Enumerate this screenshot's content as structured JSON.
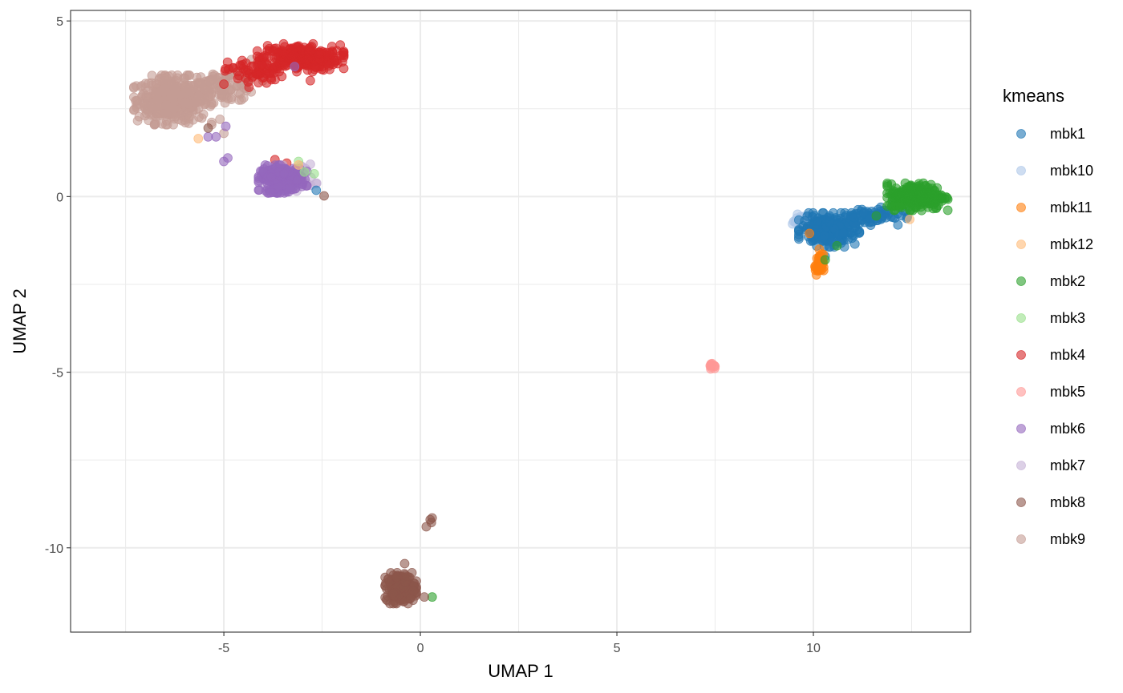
{
  "chart_data": {
    "type": "scatter",
    "xlabel": "UMAP 1",
    "ylabel": "UMAP 2",
    "xlim": [
      -8.9,
      14.0
    ],
    "ylim": [
      -12.4,
      5.3
    ],
    "x_ticks": [
      -5,
      0,
      5,
      10
    ],
    "y_ticks": [
      5,
      0,
      -5,
      -10
    ],
    "x_tick_labels": [
      "-5",
      "0",
      "5",
      "10"
    ],
    "y_tick_labels": [
      "5",
      "0",
      "-5",
      "-10"
    ],
    "grid": true,
    "theme": "bw",
    "legend": {
      "title": "kmeans",
      "position": "right"
    },
    "series": [
      {
        "name": "mbk1",
        "color": "#1f77b4",
        "clusters": [
          {
            "cx": 10.4,
            "cy": -0.95,
            "sx": 0.35,
            "sy": 0.22,
            "n": 240
          },
          {
            "cx": 11.4,
            "cy": -0.55,
            "sx": 0.45,
            "sy": 0.12,
            "n": 70
          }
        ],
        "points": [
          {
            "x": -2.65,
            "y": 0.18
          },
          {
            "x": 10.3,
            "y": -1.7
          },
          {
            "x": 12.0,
            "y": -0.25
          }
        ]
      },
      {
        "name": "mbk10",
        "color": "#aec7e8",
        "clusters": [
          {
            "cx": 9.75,
            "cy": -0.68,
            "sx": 0.14,
            "sy": 0.08,
            "n": 60
          }
        ],
        "points": []
      },
      {
        "name": "mbk11",
        "color": "#ff7f0e",
        "clusters": [
          {
            "cx": 10.15,
            "cy": -1.95,
            "sx": 0.05,
            "sy": 0.15,
            "n": 40
          }
        ],
        "points": [
          {
            "x": 9.9,
            "y": -1.05
          },
          {
            "x": 10.15,
            "y": -1.5
          }
        ]
      },
      {
        "name": "mbk12",
        "color": "#ffbb78",
        "clusters": [],
        "points": [
          {
            "x": -5.65,
            "y": 1.65
          },
          {
            "x": 12.45,
            "y": -0.65
          },
          {
            "x": -3.1,
            "y": 0.9
          }
        ]
      },
      {
        "name": "mbk2",
        "color": "#2ca02c",
        "clusters": [
          {
            "cx": 12.65,
            "cy": 0.0,
            "sx": 0.35,
            "sy": 0.18,
            "n": 280
          }
        ],
        "points": [
          {
            "x": 10.6,
            "y": -1.4
          },
          {
            "x": 10.3,
            "y": -1.8
          },
          {
            "x": 11.6,
            "y": -0.55
          },
          {
            "x": 0.3,
            "y": -11.4
          }
        ]
      },
      {
        "name": "mbk3",
        "color": "#98df8a",
        "clusters": [],
        "points": [
          {
            "x": -2.7,
            "y": 0.65
          },
          {
            "x": -3.1,
            "y": 1.0
          },
          {
            "x": -2.95,
            "y": 0.7
          }
        ]
      },
      {
        "name": "mbk4",
        "color": "#d62728",
        "clusters": [
          {
            "cx": -3.05,
            "cy": 3.95,
            "sx": 0.5,
            "sy": 0.18,
            "n": 280
          },
          {
            "cx": -4.2,
            "cy": 3.55,
            "sx": 0.35,
            "sy": 0.2,
            "n": 60
          }
        ],
        "points": [
          {
            "x": -5.0,
            "y": 3.2
          },
          {
            "x": -3.4,
            "y": 0.95
          },
          {
            "x": -3.7,
            "y": 1.05
          },
          {
            "x": -2.8,
            "y": 3.3
          }
        ]
      },
      {
        "name": "mbk5",
        "color": "#ff9896",
        "clusters": [
          {
            "cx": 7.45,
            "cy": -4.8,
            "sx": 0.06,
            "sy": 0.05,
            "n": 12
          }
        ],
        "points": []
      },
      {
        "name": "mbk6",
        "color": "#9467bd",
        "clusters": [
          {
            "cx": -3.5,
            "cy": 0.5,
            "sx": 0.28,
            "sy": 0.18,
            "n": 220
          }
        ],
        "points": [
          {
            "x": -4.9,
            "y": 1.1
          },
          {
            "x": -5.0,
            "y": 1.0
          },
          {
            "x": -4.95,
            "y": 2.0
          },
          {
            "x": -5.4,
            "y": 1.7
          },
          {
            "x": -5.2,
            "y": 1.7
          },
          {
            "x": -3.2,
            "y": 3.7
          }
        ]
      },
      {
        "name": "mbk7",
        "color": "#c5b0d5",
        "clusters": [
          {
            "cx": -3.3,
            "cy": 0.55,
            "sx": 0.3,
            "sy": 0.18,
            "n": 60
          }
        ],
        "points": []
      },
      {
        "name": "mbk8",
        "color": "#8c564b",
        "clusters": [
          {
            "cx": -0.5,
            "cy": -11.15,
            "sx": 0.18,
            "sy": 0.2,
            "n": 240
          }
        ],
        "points": [
          {
            "x": 0.25,
            "y": -9.2
          },
          {
            "x": 0.3,
            "y": -9.15
          },
          {
            "x": 0.15,
            "y": -9.4
          },
          {
            "x": 0.28,
            "y": -9.28
          },
          {
            "x": -5.4,
            "y": 1.95
          },
          {
            "x": -2.45,
            "y": 0.02
          },
          {
            "x": -0.4,
            "y": -10.45
          },
          {
            "x": 0.1,
            "y": -11.4
          }
        ]
      },
      {
        "name": "mbk9",
        "color": "#c49c94",
        "clusters": [
          {
            "cx": -6.3,
            "cy": 2.75,
            "sx": 0.45,
            "sy": 0.32,
            "n": 420
          },
          {
            "cx": -5.0,
            "cy": 3.15,
            "sx": 0.45,
            "sy": 0.22,
            "n": 110
          }
        ],
        "points": [
          {
            "x": -4.3,
            "y": 3.9
          },
          {
            "x": -5.1,
            "y": 2.2
          },
          {
            "x": -5.0,
            "y": 1.8
          }
        ]
      }
    ]
  }
}
